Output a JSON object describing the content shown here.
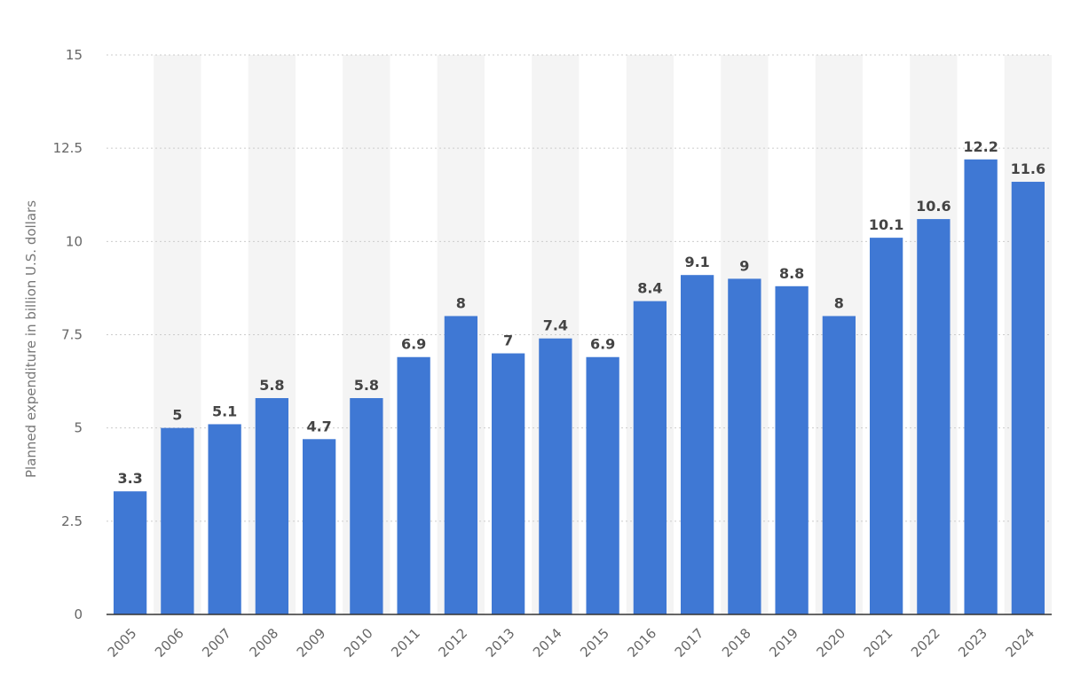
{
  "chart_data": {
    "type": "bar",
    "title": "",
    "xlabel": "",
    "ylabel": "Planned expenditure in billion U.S. dollars",
    "categories": [
      "2005",
      "2006",
      "2007",
      "2008",
      "2009",
      "2010",
      "2011",
      "2012",
      "2013",
      "2014",
      "2015",
      "2016",
      "2017",
      "2018",
      "2019",
      "2020",
      "2021",
      "2022",
      "2023",
      "2024"
    ],
    "values": [
      3.3,
      5,
      5.1,
      5.8,
      4.7,
      5.8,
      6.9,
      8,
      7,
      7.4,
      6.9,
      8.4,
      9.1,
      9,
      8.8,
      8,
      10.1,
      10.6,
      12.2,
      11.6
    ],
    "value_labels": [
      "3.3",
      "5",
      "5.1",
      "5.8",
      "4.7",
      "5.8",
      "6.9",
      "8",
      "7",
      "7.4",
      "6.9",
      "8.4",
      "9.1",
      "9",
      "8.8",
      "8",
      "10.1",
      "10.6",
      "12.2",
      "11.6"
    ],
    "yticks": [
      0,
      2.5,
      5,
      7.5,
      10,
      12.5,
      15
    ],
    "ytick_labels": [
      "0",
      "2.5",
      "5",
      "7.5",
      "10",
      "12.5",
      "15"
    ],
    "ylim": [
      0,
      15
    ],
    "grid": true,
    "legend": "none",
    "colors": {
      "bar": "#3F78D4",
      "band": "#F4F4F4",
      "grid": "#CCCCCC",
      "axis": "#333333"
    }
  }
}
